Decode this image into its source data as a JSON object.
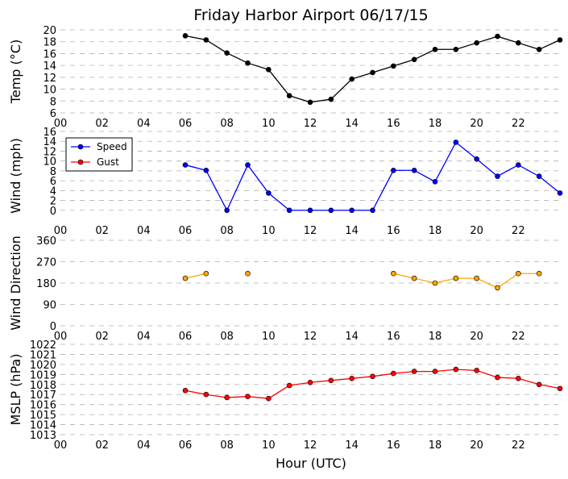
{
  "title": "Friday Harbor Airport 06/17/15",
  "xlabel": "Hour (UTC)",
  "x_tick_labels": [
    "00",
    "02",
    "04",
    "06",
    "08",
    "10",
    "12",
    "14",
    "16",
    "18",
    "20",
    "22"
  ],
  "colors": {
    "temp": "#000000",
    "speed": "#0000ff",
    "gust": "#ff0000",
    "direction": "#ffa500",
    "mslp": "#ff0000",
    "grid": "#b0b0b0"
  },
  "chart_data": [
    {
      "type": "line",
      "ylabel": "Temp ($^\\circ$C)",
      "ylabel_display": "Temp (°C)",
      "ylim": [
        6,
        20
      ],
      "yticks": [
        6,
        8,
        10,
        12,
        14,
        16,
        18,
        20
      ],
      "grid": "horizontal dashed",
      "series": [
        {
          "x": [
            6,
            7,
            8,
            9,
            10,
            11,
            12,
            13,
            14,
            15,
            16,
            17,
            18,
            19,
            20,
            21,
            22,
            23,
            24
          ],
          "values": [
            19,
            18.3,
            16.1,
            14.4,
            13.3,
            8.9,
            7.8,
            8.3,
            11.7,
            12.8,
            13.9,
            15,
            16.7,
            16.7,
            17.8,
            18.9,
            17.8,
            16.7,
            18.3
          ]
        }
      ]
    },
    {
      "type": "line",
      "ylabel": "Wind (mph)",
      "ylim": [
        -2,
        16
      ],
      "yticks": [
        0,
        2,
        4,
        6,
        8,
        10,
        12,
        14,
        16
      ],
      "grid": "horizontal dashed",
      "legend": "upper-left",
      "series": [
        {
          "name": "Speed",
          "x": [
            6,
            7,
            8,
            9,
            10,
            11,
            12,
            13,
            14,
            15,
            16,
            17,
            18,
            19,
            20,
            21,
            22,
            23,
            24
          ],
          "values": [
            9.2,
            8.1,
            0,
            9.2,
            3.5,
            0,
            0,
            0,
            0,
            0,
            8.1,
            8.1,
            5.8,
            13.8,
            10.4,
            6.9,
            9.2,
            6.9,
            3.5
          ]
        },
        {
          "name": "Gust",
          "x": [],
          "values": []
        }
      ]
    },
    {
      "type": "line",
      "ylabel": "Wind Direction",
      "ylim": [
        0,
        360
      ],
      "yticks": [
        0,
        90,
        180,
        270,
        360
      ],
      "grid": "horizontal dashed",
      "series": [
        {
          "x": [
            6,
            7,
            null,
            9,
            null,
            16,
            17,
            18,
            19,
            20,
            21,
            22,
            23
          ],
          "values": [
            200,
            220,
            null,
            220,
            null,
            220,
            200,
            180,
            200,
            200,
            160,
            220,
            220
          ]
        }
      ]
    },
    {
      "type": "line",
      "ylabel": "MSLP (hPa)",
      "ylim": [
        1013,
        1022
      ],
      "yticks": [
        1013,
        1014,
        1015,
        1016,
        1017,
        1018,
        1019,
        1020,
        1021,
        1022
      ],
      "grid": "horizontal dashed",
      "series": [
        {
          "x": [
            6,
            7,
            8,
            9,
            10,
            11,
            12,
            13,
            14,
            15,
            16,
            17,
            18,
            19,
            20,
            21,
            22,
            23,
            24
          ],
          "values": [
            1017.4,
            1017,
            1016.7,
            1016.8,
            1016.6,
            1017.9,
            1018.2,
            1018.4,
            1018.6,
            1018.8,
            1019.1,
            1019.3,
            1019.3,
            1019.5,
            1019.4,
            1018.7,
            1018.6,
            1018,
            1017.6
          ]
        }
      ]
    }
  ]
}
